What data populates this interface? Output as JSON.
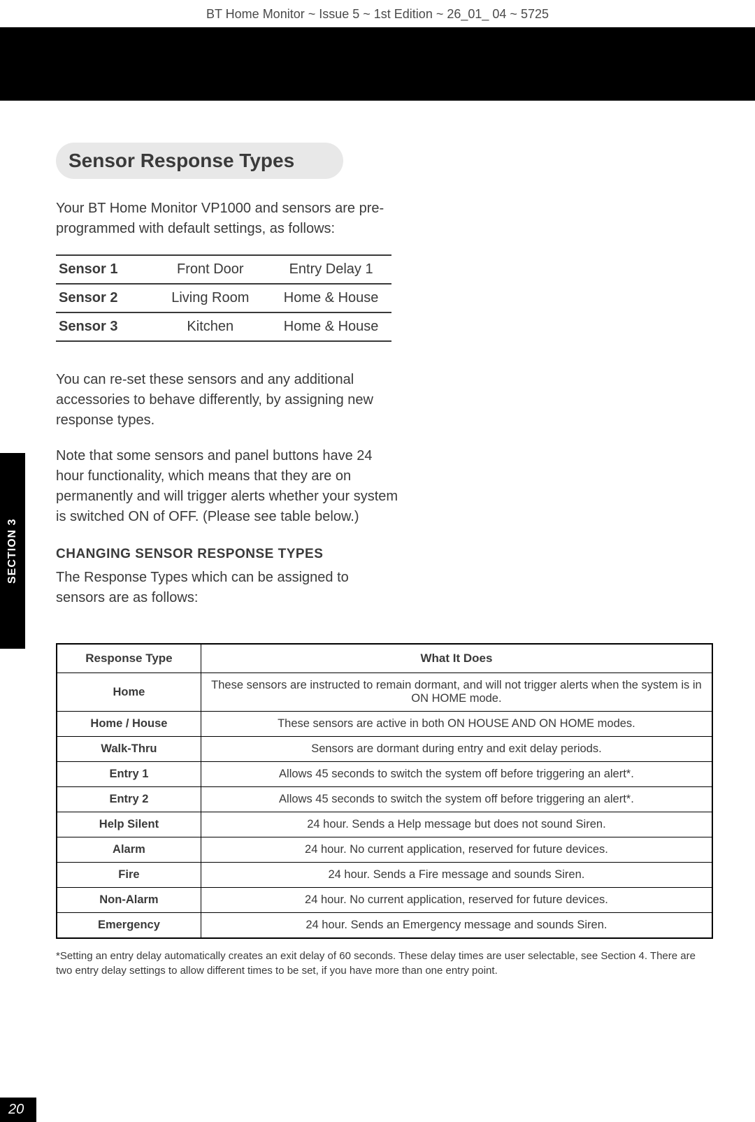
{
  "header": "BT Home Monitor ~ Issue 5 ~ 1st Edition ~ 26_01_ 04 ~ 5725",
  "section_tab": "SECTION 3",
  "page_number": "20",
  "title": "Sensor Response Types",
  "intro": "Your BT Home Monitor VP1000 and sensors are pre-programmed with default settings, as follows:",
  "sensor_table": {
    "rows": [
      {
        "c1": "Sensor 1",
        "c2": "Front Door",
        "c3": "Entry Delay 1"
      },
      {
        "c1": "Sensor 2",
        "c2": "Living Room",
        "c3": "Home & House"
      },
      {
        "c1": "Sensor 3",
        "c2": "Kitchen",
        "c3": "Home & House"
      }
    ]
  },
  "para1": "You can re-set these sensors and any additional accessories to behave differently, by assigning new response types.",
  "para2": "Note that some sensors and panel buttons have 24 hour functionality, which means that they are on permanently and will trigger alerts whether your system is switched ON of OFF. (Please see table below.)",
  "sub_heading": "CHANGING SENSOR RESPONSE TYPES",
  "para3": "The Response Types which can be assigned to sensors are as follows:",
  "response_table": {
    "col1": "Response Type",
    "col2": "What It Does",
    "rows": [
      {
        "type": "Home",
        "desc": "These sensors are instructed to remain dormant, and will not trigger alerts when the system is in ON HOME mode."
      },
      {
        "type": "Home / House",
        "desc": "These sensors are active in both ON HOUSE AND ON HOME modes."
      },
      {
        "type": "Walk-Thru",
        "desc": "Sensors are dormant during entry and exit delay periods."
      },
      {
        "type": "Entry 1",
        "desc": "Allows 45 seconds to switch the system off before triggering an alert*."
      },
      {
        "type": "Entry 2",
        "desc": "Allows 45 seconds to switch the system off before triggering an alert*."
      },
      {
        "type": "Help Silent",
        "desc": "24 hour. Sends a Help message but does not sound Siren."
      },
      {
        "type": "Alarm",
        "desc": "24 hour. No current application, reserved for future devices."
      },
      {
        "type": "Fire",
        "desc": "24 hour. Sends a Fire message and sounds Siren."
      },
      {
        "type": "Non-Alarm",
        "desc": "24 hour. No current application, reserved for future devices."
      },
      {
        "type": "Emergency",
        "desc": "24 hour. Sends an Emergency message and sounds Siren."
      }
    ]
  },
  "footnote": "*Setting an entry delay automatically creates an exit delay of 60 seconds. These delay times are user selectable, see Section 4. There are two entry delay settings to allow different times to be set, if you have more than one entry point."
}
